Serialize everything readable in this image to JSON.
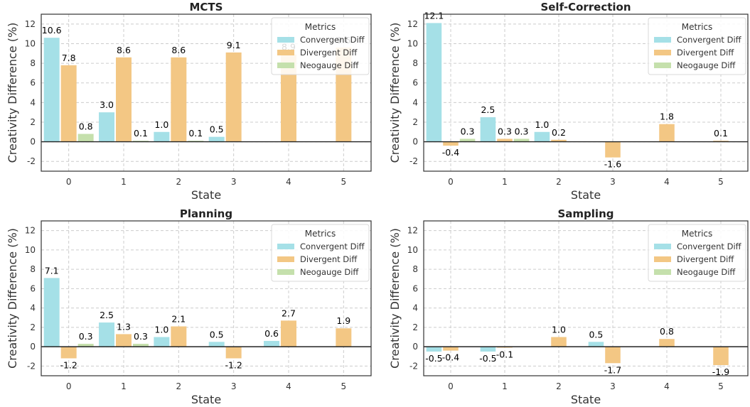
{
  "chart_data": [
    {
      "type": "bar",
      "title": "MCTS",
      "xlabel": "State",
      "ylabel": "Creativity Difference (%)",
      "categories": [
        "0",
        "1",
        "2",
        "3",
        "4",
        "5"
      ],
      "ylim": [
        -3,
        13
      ],
      "yticks": [
        "-2",
        "0",
        "2",
        "4",
        "6",
        "8",
        "10",
        "12"
      ],
      "grid": true,
      "legend": {
        "title": "Metrics",
        "placement": "top-right"
      },
      "series": [
        {
          "name": "Convergent Diff",
          "values": [
            10.6,
            3.0,
            1.0,
            0.5,
            null,
            null
          ],
          "labels": [
            "10.6",
            "3.0",
            "1.0",
            "0.5",
            "",
            ""
          ]
        },
        {
          "name": "Divergent Diff",
          "values": [
            7.8,
            8.6,
            8.6,
            9.1,
            8.9,
            9.6
          ],
          "labels": [
            "7.8",
            "8.6",
            "8.6",
            "9.1",
            "8.9",
            "9.6"
          ]
        },
        {
          "name": "Neogauge Diff",
          "values": [
            0.8,
            0.1,
            0.1,
            null,
            null,
            null
          ],
          "labels": [
            "0.8",
            "0.1",
            "0.1",
            "",
            "",
            ""
          ]
        }
      ]
    },
    {
      "type": "bar",
      "title": "Self-Correction",
      "xlabel": "State",
      "ylabel": "Creativity Difference (%)",
      "categories": [
        "0",
        "1",
        "2",
        "3",
        "4",
        "5"
      ],
      "ylim": [
        -3,
        13
      ],
      "yticks": [
        "-2",
        "0",
        "2",
        "4",
        "6",
        "8",
        "10",
        "12"
      ],
      "grid": true,
      "legend": {
        "title": "Metrics",
        "placement": "top-right"
      },
      "series": [
        {
          "name": "Convergent Diff",
          "values": [
            12.1,
            2.5,
            1.0,
            null,
            null,
            null
          ],
          "labels": [
            "12.1",
            "2.5",
            "1.0",
            "",
            "",
            ""
          ]
        },
        {
          "name": "Divergent Diff",
          "values": [
            -0.4,
            0.3,
            0.2,
            -1.6,
            1.8,
            0.1
          ],
          "labels": [
            "-0.4",
            "0.3",
            "0.2",
            "-1.6",
            "1.8",
            "0.1"
          ]
        },
        {
          "name": "Neogauge Diff",
          "values": [
            0.3,
            0.3,
            null,
            null,
            null,
            null
          ],
          "labels": [
            "0.3",
            "0.3",
            "",
            "",
            "",
            ""
          ]
        }
      ]
    },
    {
      "type": "bar",
      "title": "Planning",
      "xlabel": "State",
      "ylabel": "Creativity Difference (%)",
      "categories": [
        "0",
        "1",
        "2",
        "3",
        "4",
        "5"
      ],
      "ylim": [
        -3,
        13
      ],
      "yticks": [
        "-2",
        "0",
        "2",
        "4",
        "6",
        "8",
        "10",
        "12"
      ],
      "grid": true,
      "legend": {
        "title": "Metrics",
        "placement": "top-right"
      },
      "series": [
        {
          "name": "Convergent Diff",
          "values": [
            7.1,
            2.5,
            1.0,
            0.5,
            0.6,
            null
          ],
          "labels": [
            "7.1",
            "2.5",
            "1.0",
            "0.5",
            "0.6",
            ""
          ]
        },
        {
          "name": "Divergent Diff",
          "values": [
            -1.2,
            1.3,
            2.1,
            -1.2,
            2.7,
            1.9
          ],
          "labels": [
            "-1.2",
            "1.3",
            "2.1",
            "-1.2",
            "2.7",
            "1.9"
          ]
        },
        {
          "name": "Neogauge Diff",
          "values": [
            0.3,
            0.3,
            null,
            null,
            null,
            null
          ],
          "labels": [
            "0.3",
            "0.3",
            "",
            "",
            "",
            ""
          ]
        }
      ]
    },
    {
      "type": "bar",
      "title": "Sampling",
      "xlabel": "State",
      "ylabel": "Creativity Difference (%)",
      "categories": [
        "0",
        "1",
        "2",
        "3",
        "4",
        "5"
      ],
      "ylim": [
        -3,
        13
      ],
      "yticks": [
        "-2",
        "0",
        "2",
        "4",
        "6",
        "8",
        "10",
        "12"
      ],
      "grid": true,
      "legend": {
        "title": "Metrics",
        "placement": "top-right"
      },
      "series": [
        {
          "name": "Convergent Diff",
          "values": [
            -0.5,
            -0.5,
            null,
            0.5,
            null,
            null
          ],
          "labels": [
            "-0.5",
            "-0.5",
            "",
            "0.5",
            "",
            ""
          ]
        },
        {
          "name": "Divergent Diff",
          "values": [
            -0.4,
            -0.1,
            1.0,
            -1.7,
            0.8,
            -1.9
          ],
          "labels": [
            "-0.4",
            "-0.1",
            "1.0",
            "-1.7",
            "0.8",
            "-1.9"
          ]
        },
        {
          "name": "Neogauge Diff",
          "values": [
            null,
            null,
            null,
            null,
            null,
            null
          ],
          "labels": [
            "",
            "",
            "",
            "",
            "",
            ""
          ]
        }
      ]
    }
  ],
  "colors": {
    "Convergent Diff": "#a5e0e7",
    "Divergent Diff": "#f3c784",
    "Neogauge Diff": "#c5e0ac",
    "grid": "#cccccc",
    "axes": "#333333"
  }
}
